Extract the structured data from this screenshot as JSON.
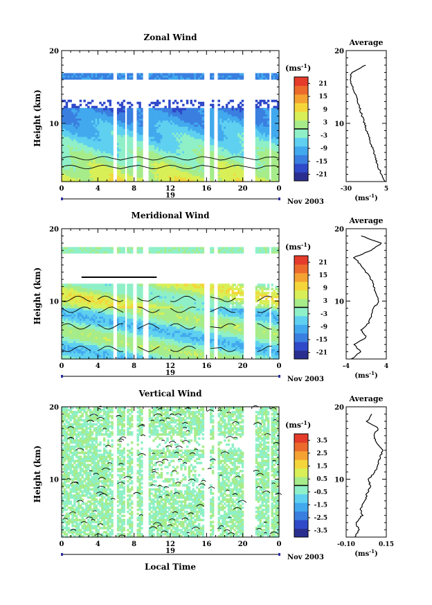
{
  "figure": {
    "month_label": "Nov 2003",
    "xlabel": "Local Time",
    "units_label": "(ms",
    "units_sup": "-1",
    "units_close": ")"
  },
  "chart_data": [
    {
      "type": "heatmap",
      "title": "Zonal Wind",
      "ylabel": "Height (km)",
      "xlim": [
        0,
        24
      ],
      "ylim": [
        2,
        20
      ],
      "x_ticks": [
        "0",
        "4",
        "8",
        "12",
        "16",
        "20",
        "0"
      ],
      "y_ticks": [
        "10",
        "20"
      ],
      "day_label": "19",
      "colorbar": {
        "ticks": [
          "21",
          "15",
          "9",
          "3",
          "-3",
          "-9",
          "-15",
          "-21"
        ],
        "range": [
          -24,
          24
        ]
      },
      "profile": {
        "title": "Average",
        "xlabel": "(ms",
        "xlim": [
          -30,
          5
        ],
        "x_ticks": [
          "-30",
          "5"
        ],
        "heights": [
          2,
          3,
          4,
          5,
          6,
          7,
          8,
          9,
          10,
          11,
          12,
          13,
          14,
          15,
          16,
          17,
          18
        ],
        "values": [
          4,
          1,
          -2,
          -4,
          -6,
          -8,
          -10,
          -12,
          -14,
          -16,
          -18,
          -20,
          -22,
          -24,
          -27,
          -25,
          -13
        ]
      }
    },
    {
      "type": "heatmap",
      "title": "Meridional Wind",
      "ylabel": "Height (km)",
      "xlim": [
        0,
        24
      ],
      "ylim": [
        2,
        20
      ],
      "x_ticks": [
        "0",
        "4",
        "8",
        "12",
        "16",
        "20",
        "0"
      ],
      "y_ticks": [
        "10",
        "20"
      ],
      "day_label": "19",
      "colorbar": {
        "ticks": [
          "21",
          "15",
          "9",
          "3",
          "-3",
          "-9",
          "-15",
          "-21"
        ],
        "range": [
          -24,
          24
        ]
      },
      "profile": {
        "title": "Average",
        "xlabel": "(ms",
        "xlim": [
          -4,
          4
        ],
        "x_ticks": [
          "-4",
          "4"
        ],
        "heights": [
          2,
          3,
          4,
          5,
          6,
          7,
          8,
          9,
          10,
          11,
          12,
          13,
          14,
          15,
          16,
          17,
          18,
          19
        ],
        "values": [
          -3,
          -1,
          -2.5,
          0,
          -1,
          0.5,
          1,
          1.5,
          2.5,
          2,
          1.5,
          1,
          0,
          -1,
          -2.5,
          1,
          3,
          -1
        ]
      }
    },
    {
      "type": "heatmap",
      "title": "Vertical Wind",
      "ylabel": "Height (km)",
      "xlim": [
        0,
        24
      ],
      "ylim": [
        2,
        20
      ],
      "x_ticks": [
        "0",
        "4",
        "8",
        "12",
        "16",
        "20",
        "0"
      ],
      "y_ticks": [
        "10",
        "20"
      ],
      "day_label": "19",
      "colorbar": {
        "ticks": [
          "3.5",
          "2.5",
          "1.5",
          "0.5",
          "-0.5",
          "-1.5",
          "-2.5",
          "-3.5"
        ],
        "range": [
          -4,
          4
        ]
      },
      "profile": {
        "title": "Average",
        "xlabel": "(ms",
        "xlim": [
          -0.1,
          0.15
        ],
        "x_ticks": [
          "-0.10",
          "0.15"
        ],
        "heights": [
          2,
          3,
          4,
          5,
          6,
          7,
          8,
          9,
          10,
          11,
          12,
          13,
          14,
          15,
          16,
          17,
          18,
          19
        ],
        "values": [
          -0.05,
          -0.02,
          -0.04,
          0.0,
          -0.01,
          0.02,
          0.03,
          0.05,
          0.04,
          0.08,
          0.1,
          0.11,
          0.13,
          0.09,
          0.07,
          0.1,
          0.03,
          0.06
        ]
      }
    }
  ]
}
